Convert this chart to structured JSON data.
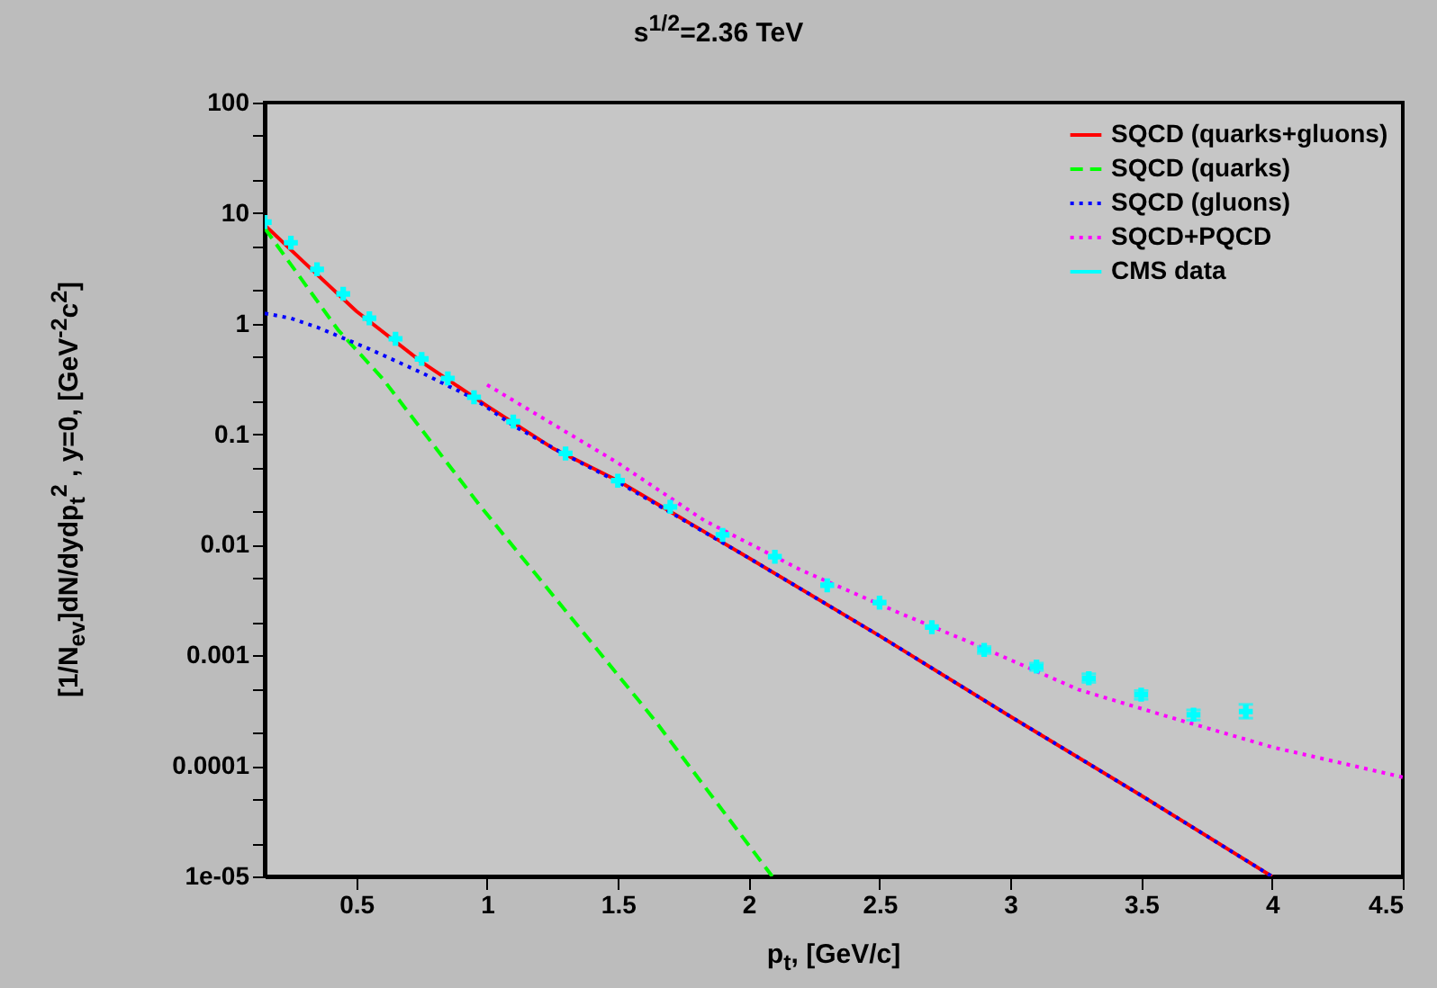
{
  "chart_data": {
    "type": "line",
    "title": "s$^{1/2}$=2.36 TeV",
    "xlabel": "p$_{t}$, [GeV/c]",
    "ylabel": "[1/N$_{ev}$]dN/dydp$_{t}$$^{2}$ , y=0, [GeV$^{-2}$c$^{2}$]",
    "log": "y",
    "legend": "top right",
    "xlim": [
      0.15,
      4.5
    ],
    "xticks": [
      0.5,
      1,
      1.5,
      2,
      2.5,
      3,
      3.5,
      4,
      4.5
    ],
    "ylim": [
      1e-05,
      100
    ],
    "yticks": [
      {
        "value": 1e-05,
        "label": "1e-05"
      },
      {
        "value": 2e-05,
        "label": null
      },
      {
        "value": 5e-05,
        "label": null
      },
      0.0001,
      {
        "value": 0.0002,
        "label": null
      },
      {
        "value": 0.0005,
        "label": null
      },
      0.001,
      {
        "value": 0.002,
        "label": null
      },
      {
        "value": 0.005,
        "label": null
      },
      0.01,
      {
        "value": 0.02,
        "label": null
      },
      {
        "value": 0.05,
        "label": null
      },
      0.1,
      {
        "value": 0.2,
        "label": null
      },
      {
        "value": 0.5,
        "label": null
      },
      1,
      {
        "value": 2,
        "label": null
      },
      {
        "value": 5,
        "label": null
      },
      10,
      {
        "value": 20,
        "label": null
      },
      {
        "value": 50,
        "label": null
      },
      100
    ],
    "series": [
      {
        "name": "SQCD (quarks+gluons)",
        "color": "#ff0000",
        "line_style": "solid",
        "x": [
          0.15,
          0.3,
          0.5,
          0.75,
          1,
          1.25,
          1.5,
          2,
          2.5,
          3,
          3.5,
          4
        ],
        "values": [
          7.8,
          3.6,
          1.3,
          0.45,
          0.18,
          0.075,
          0.038,
          0.0076,
          0.0015,
          0.00028,
          5.4e-05,
          1e-05
        ]
      },
      {
        "name": "SQCD (quarks)",
        "color": "#00ff00",
        "line_style": "dashed",
        "x": [
          0.15,
          0.43,
          0.6,
          0.97,
          1.64,
          2.09
        ],
        "values": [
          7.3,
          0.88,
          0.32,
          0.023,
          0.00026,
          1e-05
        ]
      },
      {
        "name": "SQCD (gluons)",
        "color": "#0000ff",
        "line_style": "dotted",
        "x": [
          0.15,
          0.25,
          0.35,
          0.55,
          0.75,
          0.95,
          1.1,
          1.3,
          1.5,
          2,
          2.5,
          3,
          3.5,
          4
        ],
        "values": [
          1.24,
          1.12,
          0.93,
          0.59,
          0.36,
          0.21,
          0.12,
          0.065,
          0.037,
          0.0076,
          0.0015,
          0.00028,
          5.4e-05,
          1e-05
        ]
      },
      {
        "name": "SQCD+PQCD",
        "color": "#ff00ff",
        "line_style": "dotted",
        "x": [
          1,
          1.5,
          1.83,
          2.2,
          2.57,
          2.85,
          3.26,
          3.6,
          4,
          4.5
        ],
        "values": [
          0.28,
          0.055,
          0.0166,
          0.0059,
          0.00245,
          0.0013,
          0.00049,
          0.00028,
          0.000148,
          7.9e-05
        ]
      },
      {
        "name": "CMS data",
        "type": "scatter",
        "marker": "cross",
        "color": "#00ffff",
        "x": [
          0.15,
          0.25,
          0.35,
          0.45,
          0.55,
          0.65,
          0.75,
          0.85,
          0.95,
          1.1,
          1.3,
          1.5,
          1.7,
          1.9,
          2.1,
          2.3,
          2.5,
          2.7,
          2.9,
          3.1,
          3.3,
          3.5,
          3.7,
          3.9
        ],
        "values": [
          8.3,
          5.4,
          3.1,
          1.86,
          1.12,
          0.73,
          0.48,
          0.32,
          0.216,
          0.13,
          0.067,
          0.038,
          0.022,
          0.0123,
          0.0078,
          0.0043,
          0.003,
          0.0018,
          0.00112,
          0.00079,
          0.00062,
          0.00044,
          0.00029,
          0.00031
        ],
        "errors": [
          null,
          null,
          null,
          null,
          null,
          null,
          null,
          null,
          null,
          null,
          null,
          null,
          null,
          null,
          null,
          null,
          null,
          null,
          [
            0.00104,
            0.0012
          ],
          [
            0.00073,
            0.00085
          ],
          [
            0.00057,
            0.00068
          ],
          [
            0.0004,
            0.00048
          ],
          [
            0.00026,
            0.00032
          ],
          [
            0.00027,
            0.00036
          ]
        ]
      }
    ]
  }
}
